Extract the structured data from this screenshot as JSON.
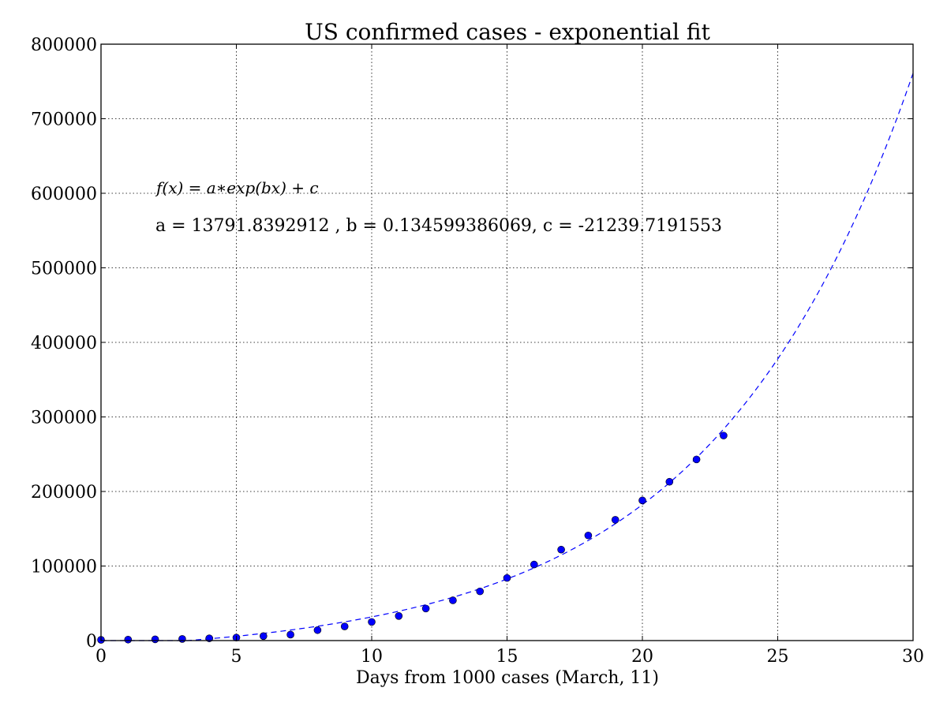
{
  "chart_data": {
    "type": "scatter",
    "title": "US confirmed cases - exponential fit",
    "xlabel": "Days from 1000 cases (March, 11)",
    "ylabel": "",
    "xlim": [
      0,
      30
    ],
    "ylim": [
      0,
      800000
    ],
    "x_ticks": [
      0,
      5,
      10,
      15,
      20,
      25,
      30
    ],
    "y_ticks": [
      0,
      100000,
      200000,
      300000,
      400000,
      500000,
      600000,
      700000,
      800000
    ],
    "grid": true,
    "colors": {
      "points": "#0000ff",
      "fit": "#0000ff"
    },
    "series": [
      {
        "style": "points",
        "x": [
          0,
          1,
          2,
          3,
          4,
          5,
          6,
          7,
          8,
          9,
          10,
          11,
          12,
          13,
          14,
          15,
          16,
          17,
          18,
          19,
          20,
          21,
          22,
          23
        ],
        "y": [
          1000,
          1300,
          1700,
          2200,
          3000,
          4000,
          6000,
          8000,
          14000,
          19000,
          25000,
          33000,
          43000,
          54000,
          66000,
          84000,
          102000,
          122000,
          141000,
          162000,
          188000,
          213000,
          243000,
          275000
        ]
      },
      {
        "style": "dashed-line",
        "fit": {
          "a": 13791.8392912,
          "b": 0.134599386069,
          "c": -21239.7191553
        },
        "x_range": [
          0,
          30
        ]
      }
    ],
    "annotations": {
      "formula": "f(x) = a∗exp(bx) + c",
      "params": "a = 13791.8392912 , b = 0.134599386069, c = -21239.7191553"
    }
  }
}
